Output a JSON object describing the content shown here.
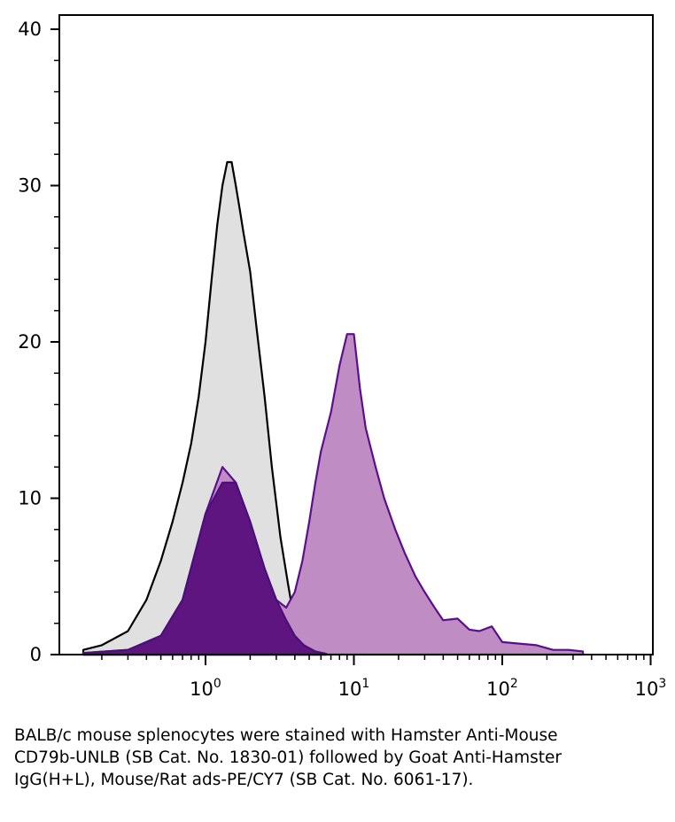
{
  "chart_data": {
    "type": "area",
    "x_scale": "log",
    "xlim": [
      0.1,
      1000
    ],
    "ylim": [
      0,
      40
    ],
    "y_ticks": [
      0,
      10,
      20,
      30,
      40
    ],
    "y_tick_labels": [
      "0",
      "10",
      "20",
      "30",
      "40"
    ],
    "x_ticks": [
      {
        "value": 1,
        "base": "10",
        "exp": "0"
      },
      {
        "value": 10,
        "base": "10",
        "exp": "1"
      },
      {
        "value": 100,
        "base": "10",
        "exp": "2"
      },
      {
        "value": 1000,
        "base": "10",
        "exp": "3"
      }
    ],
    "grid": false,
    "series": [
      {
        "role": "control",
        "fill": "#e0e0e0",
        "stroke": "#000000",
        "x": [
          0.15,
          0.2,
          0.3,
          0.4,
          0.5,
          0.6,
          0.7,
          0.8,
          0.9,
          1.0,
          1.1,
          1.2,
          1.3,
          1.4,
          1.5,
          1.6,
          1.7,
          1.8,
          2.0,
          2.2,
          2.5,
          2.8,
          3.2,
          3.6,
          4.0,
          4.6,
          5.3,
          6.5
        ],
        "y": [
          0.3,
          0.6,
          1.5,
          3.5,
          6.0,
          8.5,
          11.0,
          13.5,
          16.5,
          20.0,
          24.0,
          27.5,
          30.0,
          31.5,
          31.5,
          30.0,
          28.5,
          27.0,
          24.5,
          21.0,
          16.5,
          12.0,
          7.5,
          4.5,
          2.0,
          1.0,
          0.4,
          0.1
        ]
      },
      {
        "role": "stained",
        "fill": "#c08cc4",
        "stroke": "#5b0f8a",
        "x": [
          0.15,
          0.3,
          0.5,
          0.7,
          1.0,
          1.3,
          1.6,
          2.0,
          2.5,
          3.0,
          3.5,
          4.0,
          4.5,
          5.0,
          5.5,
          6.0,
          7.0,
          8.0,
          9.0,
          10.0,
          11.0,
          12.0,
          14.0,
          16.0,
          19.0,
          22.0,
          26.0,
          30.0,
          35.0,
          40.0,
          50.0,
          60.0,
          70.0,
          85.0,
          100.0,
          130.0,
          170.0,
          220.0,
          280.0,
          350.0
        ],
        "y": [
          0.1,
          0.3,
          1.2,
          3.5,
          9.0,
          12.0,
          11.0,
          8.5,
          5.5,
          3.5,
          3.0,
          4.0,
          6.0,
          8.5,
          11.0,
          13.0,
          15.5,
          18.5,
          20.5,
          20.5,
          17.0,
          14.5,
          12.0,
          10.0,
          8.0,
          6.5,
          5.0,
          4.0,
          3.0,
          2.2,
          2.3,
          1.6,
          1.5,
          1.8,
          0.8,
          0.7,
          0.6,
          0.3,
          0.3,
          0.2
        ]
      },
      {
        "role": "overlap",
        "fill": "#5e1580",
        "stroke": "#4a0f7a",
        "x": [
          0.15,
          0.3,
          0.5,
          0.7,
          1.0,
          1.3,
          1.6,
          2.0,
          2.5,
          3.0,
          3.5,
          4.0,
          4.6,
          5.5,
          6.5
        ],
        "y": [
          0.1,
          0.3,
          1.2,
          3.5,
          9.0,
          11.0,
          11.0,
          8.5,
          5.5,
          3.5,
          2.2,
          1.2,
          0.6,
          0.2,
          0.05
        ]
      }
    ]
  },
  "caption": "BALB/c mouse splenocytes were stained with Hamster Anti-Mouse CD79b-UNLB (SB Cat. No. 1830-01) followed by Goat Anti-Hamster IgG(H+L), Mouse/Rat ads-PE/CY7 (SB Cat. No. 6061-17)."
}
